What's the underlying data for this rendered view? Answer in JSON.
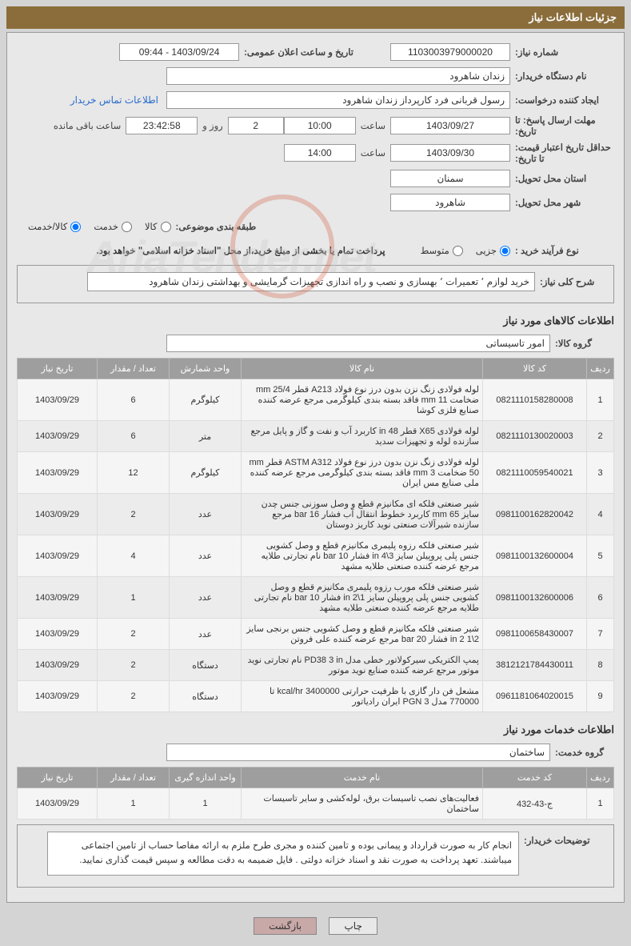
{
  "header": {
    "title": "جزئیات اطلاعات نیاز"
  },
  "form": {
    "rows": [
      {
        "label": "شماره نیاز:",
        "fields": [
          {
            "cls": "field-med",
            "val": "1103003979000020"
          },
          {
            "label2": "تاریخ و ساعت اعلان عمومی:",
            "cls": "field-med",
            "val": "1403/09/24 - 09:44"
          }
        ]
      },
      {
        "label": "نام دستگاه خریدار:",
        "fields": [
          {
            "cls": "field-wide",
            "val": "زندان شاهرود"
          }
        ]
      },
      {
        "label": "ایجاد کننده درخواست:",
        "fields": [
          {
            "cls": "field-wide",
            "val": "رسول قربانی فرد کارپرداز زندان شاهرود"
          }
        ],
        "link": "اطلاعات تماس خریدار"
      },
      {
        "label": "مهلت ارسال پاسخ: تا تاریخ:",
        "fields": [
          {
            "cls": "field-med",
            "val": "1403/09/27"
          },
          {
            "inline": "ساعت"
          },
          {
            "cls": "field-sm",
            "val": "10:00"
          },
          {
            "cls": "field-xs",
            "val": "2"
          },
          {
            "inline": "روز و"
          },
          {
            "cls": "field-sm",
            "val": "23:42:58"
          },
          {
            "inline": "ساعت باقی مانده"
          }
        ]
      },
      {
        "label": "حداقل تاریخ اعتبار قیمت: تا تاریخ:",
        "fields": [
          {
            "cls": "field-med",
            "val": "1403/09/30"
          },
          {
            "inline": "ساعت"
          },
          {
            "cls": "field-sm",
            "val": "14:00"
          }
        ]
      },
      {
        "label": "استان محل تحویل:",
        "fields": [
          {
            "cls": "field-med",
            "val": "سمنان"
          }
        ]
      },
      {
        "label": "شهر محل تحویل:",
        "fields": [
          {
            "cls": "field-med",
            "val": "شاهرود"
          }
        ]
      }
    ],
    "category": {
      "label": "طبقه بندی موضوعی:",
      "options": [
        {
          "text": "کالا",
          "checked": false
        },
        {
          "text": "خدمت",
          "checked": false
        },
        {
          "text": "کالا/خدمت",
          "checked": true
        }
      ]
    },
    "process": {
      "label": "نوع فرآیند خرید :",
      "options": [
        {
          "text": "جزیی",
          "checked": true
        },
        {
          "text": "متوسط",
          "checked": false
        }
      ],
      "note": "پرداخت تمام یا بخشی از مبلغ خرید،از محل \"اسناد خزانه اسلامی\" خواهد بود."
    },
    "overall": {
      "label": "شرح کلی نیاز:",
      "text": "خرید لوازم ٬ تعمیرات ٬ بهسازی و نصب و راه اندازی تجهیزات گرمایشی و بهداشتی زندان شاهرود"
    }
  },
  "goods": {
    "title": "اطلاعات کالاهای مورد نیاز",
    "groupLabel": "گروه کالا:",
    "group": "امور تاسیساتی",
    "cols": [
      "ردیف",
      "کد کالا",
      "نام کالا",
      "واحد شمارش",
      "تعداد / مقدار",
      "تاریخ نیاز"
    ],
    "rows": [
      {
        "i": "1",
        "code": "0821110158280008",
        "name": "لوله فولادی زنگ نزن بدون درز نوع فولاد A213 قطر mm 25/4 ضخامت mm 11 فاقد بسته بندی کیلوگرمی مرجع عرضه کننده صنایع فلزی کوشا",
        "unit": "کیلوگرم",
        "qty": "6",
        "date": "1403/09/29"
      },
      {
        "i": "2",
        "code": "0821110130020003",
        "name": "لوله فولادی X65 قطر in 48 کاربرد آب و نفت و گاز و پایل مرجع سازنده لوله و تجهیزات سدید",
        "unit": "متر",
        "qty": "6",
        "date": "1403/09/29"
      },
      {
        "i": "3",
        "code": "0821110059540021",
        "name": "لوله فولادی زنگ نزن بدون درز نوع فولاد ASTM A312 قطر mm 50 ضخامت mm 3 فاقد بسته بندی کیلوگرمی مرجع عرضه کننده ملی صنایع مس ایران",
        "unit": "کیلوگرم",
        "qty": "12",
        "date": "1403/09/29"
      },
      {
        "i": "4",
        "code": "0981100162820042",
        "name": "شیر صنعتی فلکه ای مکانیزم قطع و وصل سوزنی جنس چدن سایز mm 65 کاربرد خطوط انتقال آب فشار bar 16 مرجع سازنده شیرآلات صنعتی نوید کاریز دوستان",
        "unit": "عدد",
        "qty": "2",
        "date": "1403/09/29"
      },
      {
        "i": "5",
        "code": "0981100132600004",
        "name": "شیر صنعتی فلکه رزوه پلیمری مکانیزم قطع و وصل کشویی جنس پلی پروپیلن سایز 3\\4 in فشار bar 10 نام تجارتی طلایه مرجع عرضه کننده صنعتی طلایه مشهد",
        "unit": "عدد",
        "qty": "4",
        "date": "1403/09/29"
      },
      {
        "i": "6",
        "code": "0981100132600006",
        "name": "شیر صنعتی فلکه مورب رزوه پلیمری مکانیزم قطع و وصل کشویی جنس پلی پروپیلن سایز 1\\2 in فشار bar 10 نام تجارتی طلایه مرجع عرضه کننده صنعتی طلایه مشهد",
        "unit": "عدد",
        "qty": "1",
        "date": "1403/09/29"
      },
      {
        "i": "7",
        "code": "0981100658430007",
        "name": "شیر صنعتی فلکه مکانیزم قطع و وصل کشویی جنس برنجی سایز in 2 1\\2 فشار bar 20 مرجع عرضه کننده علی فروتن",
        "unit": "عدد",
        "qty": "2",
        "date": "1403/09/29"
      },
      {
        "i": "8",
        "code": "3812121784430011",
        "name": "پمپ الکتریکی سیرکولاتور خطی مدل PD38 3 in نام تجارتی نوید موتور مرجع عرضه کننده صنایع نوید موتور",
        "unit": "دستگاه",
        "qty": "2",
        "date": "1403/09/29"
      },
      {
        "i": "9",
        "code": "0961181064020015",
        "name": "مشعل فن دار گازی با ظرفیت حرارتی kcal/hr 3400000 تا 770000 مدل PGN 3 ایران رادیاتور",
        "unit": "دستگاه",
        "qty": "2",
        "date": "1403/09/29"
      }
    ]
  },
  "services": {
    "title": "اطلاعات خدمات مورد نیاز",
    "groupLabel": "گروه خدمت:",
    "group": "ساختمان",
    "cols": [
      "ردیف",
      "کد خدمت",
      "نام خدمت",
      "واحد اندازه گیری",
      "تعداد / مقدار",
      "تاریخ نیاز"
    ],
    "rows": [
      {
        "i": "1",
        "code": "ج-43-432",
        "name": "فعالیت‌های نصب تاسیسات برق، لوله‌کشی و سایر تاسیسات ساختمان",
        "unit": "1",
        "qty": "1",
        "date": "1403/09/29"
      }
    ]
  },
  "buyerNotes": {
    "label": "توضیحات خریدار:",
    "text": "انجام کار به صورت قرارداد و پیمانی بوده و تامین کننده و مجری طرح ملزم به ارائه مفاصا حساب از تامین اجتماعی میباشند. تعهد پرداخت به صورت نقد و اسناد خزانه دولتی . فایل ضمیمه به دقت مطالعه و سپس قیمت گذاری نمایید."
  },
  "buttons": {
    "print": "چاپ",
    "back": "بازگشت"
  },
  "watermark": "AriaTender.net"
}
